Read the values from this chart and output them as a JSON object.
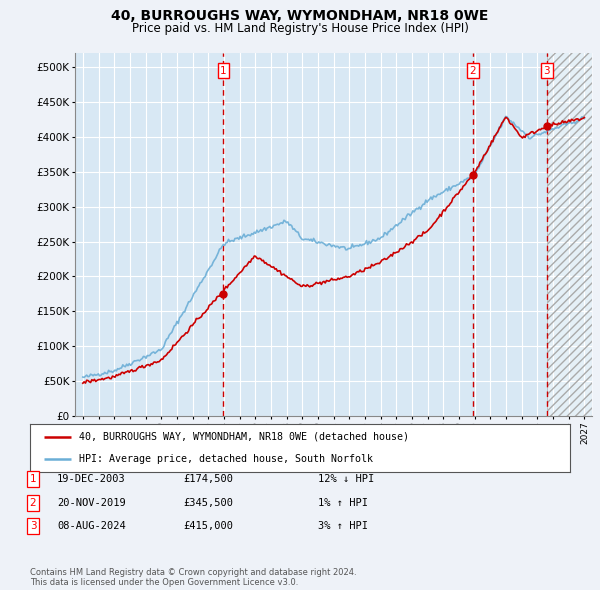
{
  "title": "40, BURROUGHS WAY, WYMONDHAM, NR18 0WE",
  "subtitle": "Price paid vs. HM Land Registry's House Price Index (HPI)",
  "legend_line1": "40, BURROUGHS WAY, WYMONDHAM, NR18 0WE (detached house)",
  "legend_line2": "HPI: Average price, detached house, South Norfolk",
  "footnote1": "Contains HM Land Registry data © Crown copyright and database right 2024.",
  "footnote2": "This data is licensed under the Open Government Licence v3.0.",
  "transactions": [
    {
      "num": 1,
      "date": "19-DEC-2003",
      "price": "£174,500",
      "pct": "12% ↓ HPI"
    },
    {
      "num": 2,
      "date": "20-NOV-2019",
      "price": "£345,500",
      "pct": "1% ↑ HPI"
    },
    {
      "num": 3,
      "date": "08-AUG-2024",
      "price": "£415,000",
      "pct": "3% ↑ HPI"
    }
  ],
  "sale_dates": [
    2003.97,
    2019.89,
    2024.6
  ],
  "sale_prices": [
    174500,
    345500,
    415000
  ],
  "hpi_color": "#6baed6",
  "price_color": "#cc0000",
  "dashed_color": "#cc0000",
  "background_color": "#eef2f8",
  "plot_bg_color": "#d8e8f4",
  "grid_color": "#ffffff",
  "ylim": [
    0,
    520000
  ],
  "xlim": [
    1994.5,
    2027.5
  ],
  "yticks": [
    0,
    50000,
    100000,
    150000,
    200000,
    250000,
    300000,
    350000,
    400000,
    450000,
    500000
  ],
  "xtick_years": [
    1995,
    1996,
    1997,
    1998,
    1999,
    2000,
    2001,
    2002,
    2003,
    2004,
    2005,
    2006,
    2007,
    2008,
    2009,
    2010,
    2011,
    2012,
    2013,
    2014,
    2015,
    2016,
    2017,
    2018,
    2019,
    2020,
    2021,
    2022,
    2023,
    2024,
    2025,
    2026,
    2027
  ]
}
